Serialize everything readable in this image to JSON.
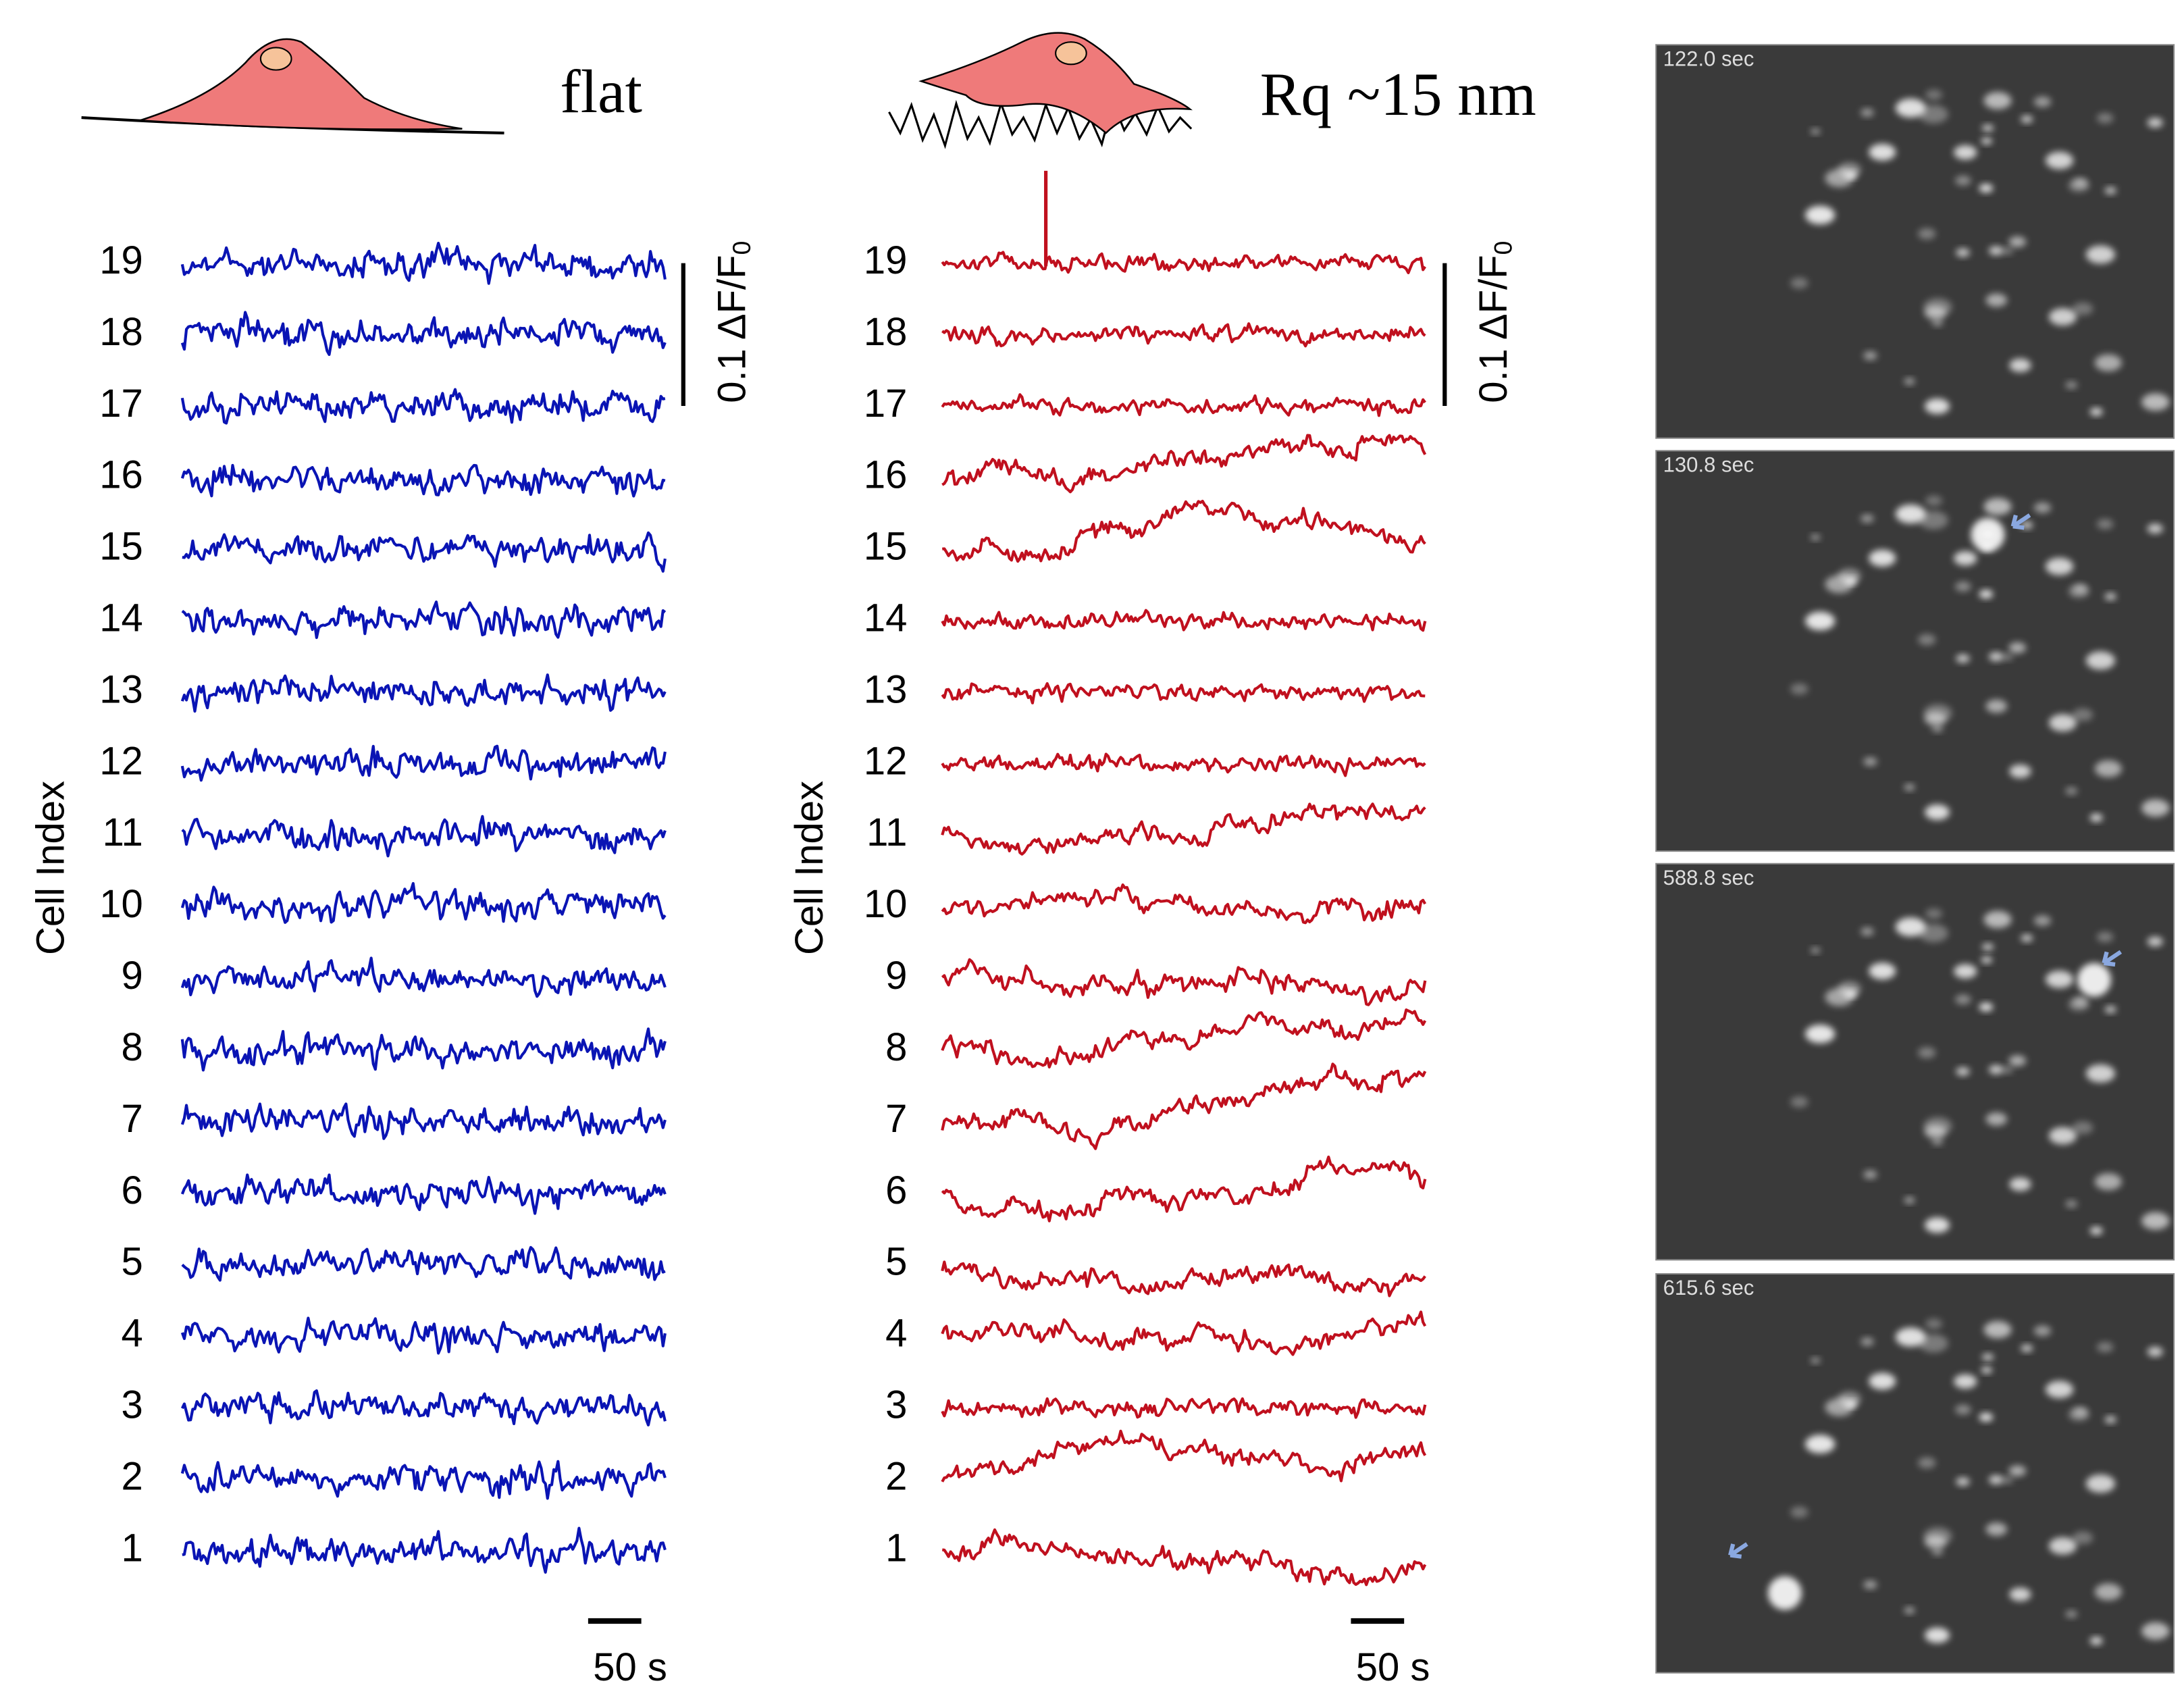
{
  "panels": [
    {
      "title": "flat",
      "y_axis_label": "Cell Index",
      "rows": [
        "19",
        "18",
        "17",
        "16",
        "15",
        "14",
        "13",
        "12",
        "11",
        "10",
        "9",
        "8",
        "7",
        "6",
        "5",
        "4",
        "3",
        "2",
        "1"
      ],
      "scale_bar_y": "0.1 ΔF/F",
      "scale_bar_y_sub": "0",
      "scale_bar_x": "50 s"
    },
    {
      "title": "Rq ~15 nm",
      "y_axis_label": "Cell Index",
      "rows": [
        "19",
        "18",
        "17",
        "16",
        "15",
        "14",
        "13",
        "12",
        "11",
        "10",
        "9",
        "8",
        "7",
        "6",
        "5",
        "4",
        "3",
        "2",
        "1"
      ],
      "scale_bar_y": "0.1 ΔF/F",
      "scale_bar_y_sub": "0",
      "scale_bar_x": "50 s"
    }
  ],
  "images": [
    {
      "timestamp": "122.0 sec"
    },
    {
      "timestamp": "130.8 sec"
    },
    {
      "timestamp": "588.8 sec"
    },
    {
      "timestamp": "615.6 sec"
    }
  ]
}
